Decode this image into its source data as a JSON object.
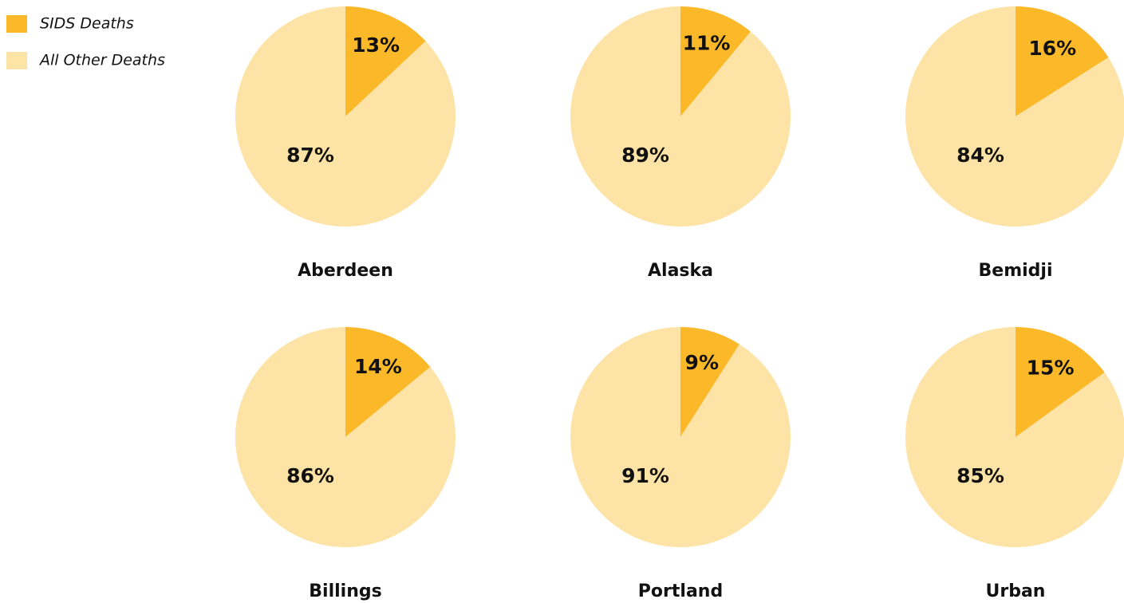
{
  "chart_data": {
    "type": "pie",
    "categories": [
      "Aberdeen",
      "Alaska",
      "Bemidji",
      "Billings",
      "Portland",
      "Urban"
    ],
    "series": [
      {
        "name": "SIDS Deaths",
        "color": "#fbb829",
        "values": [
          13,
          11,
          16,
          14,
          9,
          15
        ],
        "value_labels": [
          "13%",
          "11%",
          "16%",
          "14%",
          "9%",
          "15%"
        ]
      },
      {
        "name": "All Other Deaths",
        "color": "#fde3a5",
        "values": [
          87,
          89,
          84,
          86,
          91,
          85
        ],
        "value_labels": [
          "87%",
          "89%",
          "84%",
          "86%",
          "91%",
          "85%"
        ]
      }
    ]
  }
}
